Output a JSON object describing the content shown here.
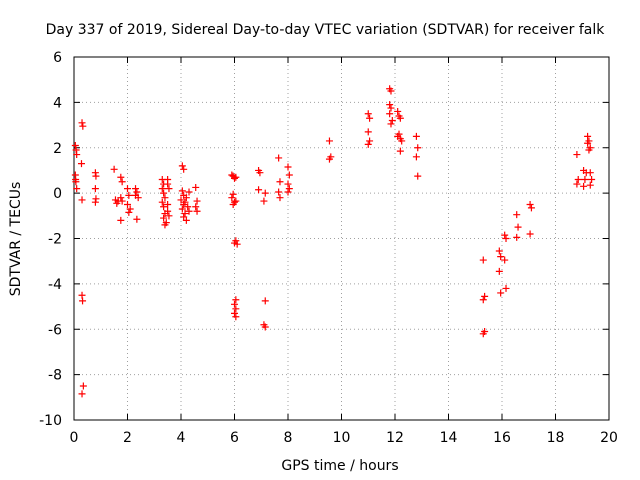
{
  "chart_data": {
    "type": "scatter",
    "title": "Day 337 of 2019, Sidereal Day-to-day VTEC variation (SDTVAR) for receiver falk",
    "xlabel": "GPS time / hours",
    "ylabel": "SDTVAR / TECUs",
    "xlim": [
      0,
      20
    ],
    "ylim": [
      -10,
      6
    ],
    "xticks": [
      0,
      2,
      4,
      6,
      8,
      10,
      12,
      14,
      16,
      18,
      20
    ],
    "yticks": [
      -10,
      -8,
      -6,
      -4,
      -2,
      0,
      2,
      4,
      6
    ],
    "grid": true,
    "marker": "+",
    "color": "#ff0000",
    "series": [
      {
        "name": "SDTVAR",
        "points": [
          [
            0.05,
            2.1
          ],
          [
            0.08,
            1.9
          ],
          [
            0.1,
            1.7
          ],
          [
            0.05,
            0.8
          ],
          [
            0.07,
            0.5
          ],
          [
            0.1,
            0.2
          ],
          [
            0.06,
            0.6
          ],
          [
            0.3,
            3.1
          ],
          [
            0.33,
            2.95
          ],
          [
            0.28,
            1.3
          ],
          [
            0.3,
            -0.3
          ],
          [
            0.3,
            -4.5
          ],
          [
            0.32,
            -4.75
          ],
          [
            0.35,
            -8.5
          ],
          [
            0.3,
            -8.85
          ],
          [
            0.8,
            0.9
          ],
          [
            0.82,
            0.75
          ],
          [
            0.8,
            0.2
          ],
          [
            0.82,
            -0.25
          ],
          [
            0.8,
            -0.4
          ],
          [
            1.5,
            1.05
          ],
          [
            1.55,
            -0.3
          ],
          [
            1.6,
            -0.45
          ],
          [
            1.65,
            -0.35
          ],
          [
            1.75,
            0.7
          ],
          [
            1.8,
            0.5
          ],
          [
            1.75,
            -0.2
          ],
          [
            1.8,
            -0.35
          ],
          [
            1.75,
            -1.2
          ],
          [
            2.0,
            0.2
          ],
          [
            2.05,
            -0.1
          ],
          [
            2.0,
            -0.5
          ],
          [
            2.1,
            -0.7
          ],
          [
            2.05,
            -0.85
          ],
          [
            2.3,
            0.2
          ],
          [
            2.35,
            0.05
          ],
          [
            2.3,
            -0.1
          ],
          [
            2.4,
            -0.2
          ],
          [
            2.35,
            -1.15
          ],
          [
            3.3,
            0.6
          ],
          [
            3.35,
            0.4
          ],
          [
            3.3,
            0.2
          ],
          [
            3.35,
            0.0
          ],
          [
            3.4,
            -0.2
          ],
          [
            3.3,
            -0.4
          ],
          [
            3.35,
            -0.6
          ],
          [
            3.4,
            -0.9
          ],
          [
            3.35,
            -1.1
          ],
          [
            3.45,
            -1.3
          ],
          [
            3.4,
            -1.4
          ],
          [
            3.5,
            0.6
          ],
          [
            3.5,
            0.4
          ],
          [
            3.55,
            0.2
          ],
          [
            3.5,
            -0.5
          ],
          [
            3.55,
            -1.0
          ],
          [
            3.5,
            -0.8
          ],
          [
            4.05,
            1.2
          ],
          [
            4.1,
            1.05
          ],
          [
            4.05,
            0.1
          ],
          [
            4.1,
            -0.1
          ],
          [
            4.0,
            -0.3
          ],
          [
            4.1,
            -0.5
          ],
          [
            4.05,
            -0.7
          ],
          [
            4.15,
            -0.9
          ],
          [
            4.1,
            -1.05
          ],
          [
            4.2,
            -1.2
          ],
          [
            4.15,
            -0.4
          ],
          [
            4.25,
            -0.6
          ],
          [
            4.3,
            -0.8
          ],
          [
            4.2,
            -0.2
          ],
          [
            4.3,
            0.05
          ],
          [
            4.55,
            0.25
          ],
          [
            4.6,
            -0.35
          ],
          [
            4.55,
            -0.6
          ],
          [
            4.6,
            -0.8
          ],
          [
            5.9,
            0.8
          ],
          [
            5.95,
            0.75
          ],
          [
            6.0,
            0.65
          ],
          [
            6.05,
            0.7
          ],
          [
            5.95,
            -0.05
          ],
          [
            5.9,
            -0.2
          ],
          [
            6.0,
            -0.4
          ],
          [
            5.95,
            -0.5
          ],
          [
            6.05,
            -0.35
          ],
          [
            6.05,
            -2.1
          ],
          [
            6.1,
            -2.25
          ],
          [
            6.0,
            -2.2
          ],
          [
            6.05,
            -4.7
          ],
          [
            6.0,
            -4.9
          ],
          [
            6.05,
            -5.1
          ],
          [
            6.0,
            -5.3
          ],
          [
            6.05,
            -5.45
          ],
          [
            6.9,
            1.0
          ],
          [
            6.95,
            0.9
          ],
          [
            6.9,
            0.15
          ],
          [
            7.15,
            0.0
          ],
          [
            7.1,
            -0.35
          ],
          [
            7.15,
            -4.75
          ],
          [
            7.1,
            -5.8
          ],
          [
            7.15,
            -5.9
          ],
          [
            7.65,
            1.55
          ],
          [
            7.7,
            0.5
          ],
          [
            7.65,
            0.05
          ],
          [
            7.7,
            -0.2
          ],
          [
            8.0,
            1.15
          ],
          [
            8.05,
            0.8
          ],
          [
            8.0,
            0.4
          ],
          [
            8.05,
            0.2
          ],
          [
            8.0,
            0.05
          ],
          [
            9.55,
            2.3
          ],
          [
            9.6,
            1.6
          ],
          [
            9.55,
            1.5
          ],
          [
            11.0,
            3.5
          ],
          [
            11.05,
            3.3
          ],
          [
            11.0,
            2.7
          ],
          [
            11.05,
            2.3
          ],
          [
            11.0,
            2.15
          ],
          [
            11.8,
            4.6
          ],
          [
            11.85,
            4.5
          ],
          [
            11.8,
            3.9
          ],
          [
            11.85,
            3.75
          ],
          [
            11.8,
            3.5
          ],
          [
            11.9,
            3.2
          ],
          [
            11.85,
            3.05
          ],
          [
            12.1,
            3.6
          ],
          [
            12.15,
            3.4
          ],
          [
            12.2,
            3.3
          ],
          [
            12.15,
            2.6
          ],
          [
            12.2,
            2.4
          ],
          [
            12.1,
            2.5
          ],
          [
            12.25,
            2.3
          ],
          [
            12.2,
            1.85
          ],
          [
            12.8,
            2.5
          ],
          [
            12.85,
            2.0
          ],
          [
            12.8,
            1.6
          ],
          [
            12.85,
            0.75
          ],
          [
            15.3,
            -2.95
          ],
          [
            15.35,
            -4.55
          ],
          [
            15.3,
            -4.7
          ],
          [
            15.35,
            -6.1
          ],
          [
            15.3,
            -6.2
          ],
          [
            15.9,
            -2.55
          ],
          [
            15.95,
            -2.8
          ],
          [
            15.9,
            -3.45
          ],
          [
            15.95,
            -4.4
          ],
          [
            16.1,
            -1.85
          ],
          [
            16.15,
            -2.0
          ],
          [
            16.1,
            -2.95
          ],
          [
            16.15,
            -4.2
          ],
          [
            16.55,
            -0.95
          ],
          [
            16.6,
            -1.5
          ],
          [
            16.55,
            -1.95
          ],
          [
            17.05,
            -0.5
          ],
          [
            17.1,
            -0.65
          ],
          [
            17.05,
            -1.8
          ],
          [
            18.8,
            1.7
          ],
          [
            18.85,
            0.6
          ],
          [
            18.8,
            0.4
          ],
          [
            19.05,
            1.0
          ],
          [
            19.1,
            0.6
          ],
          [
            19.05,
            0.3
          ],
          [
            19.15,
            0.9
          ],
          [
            19.2,
            2.5
          ],
          [
            19.25,
            2.3
          ],
          [
            19.2,
            2.2
          ],
          [
            19.3,
            2.0
          ],
          [
            19.25,
            1.9
          ],
          [
            19.3,
            0.9
          ],
          [
            19.35,
            0.6
          ],
          [
            19.3,
            0.35
          ]
        ]
      }
    ]
  }
}
